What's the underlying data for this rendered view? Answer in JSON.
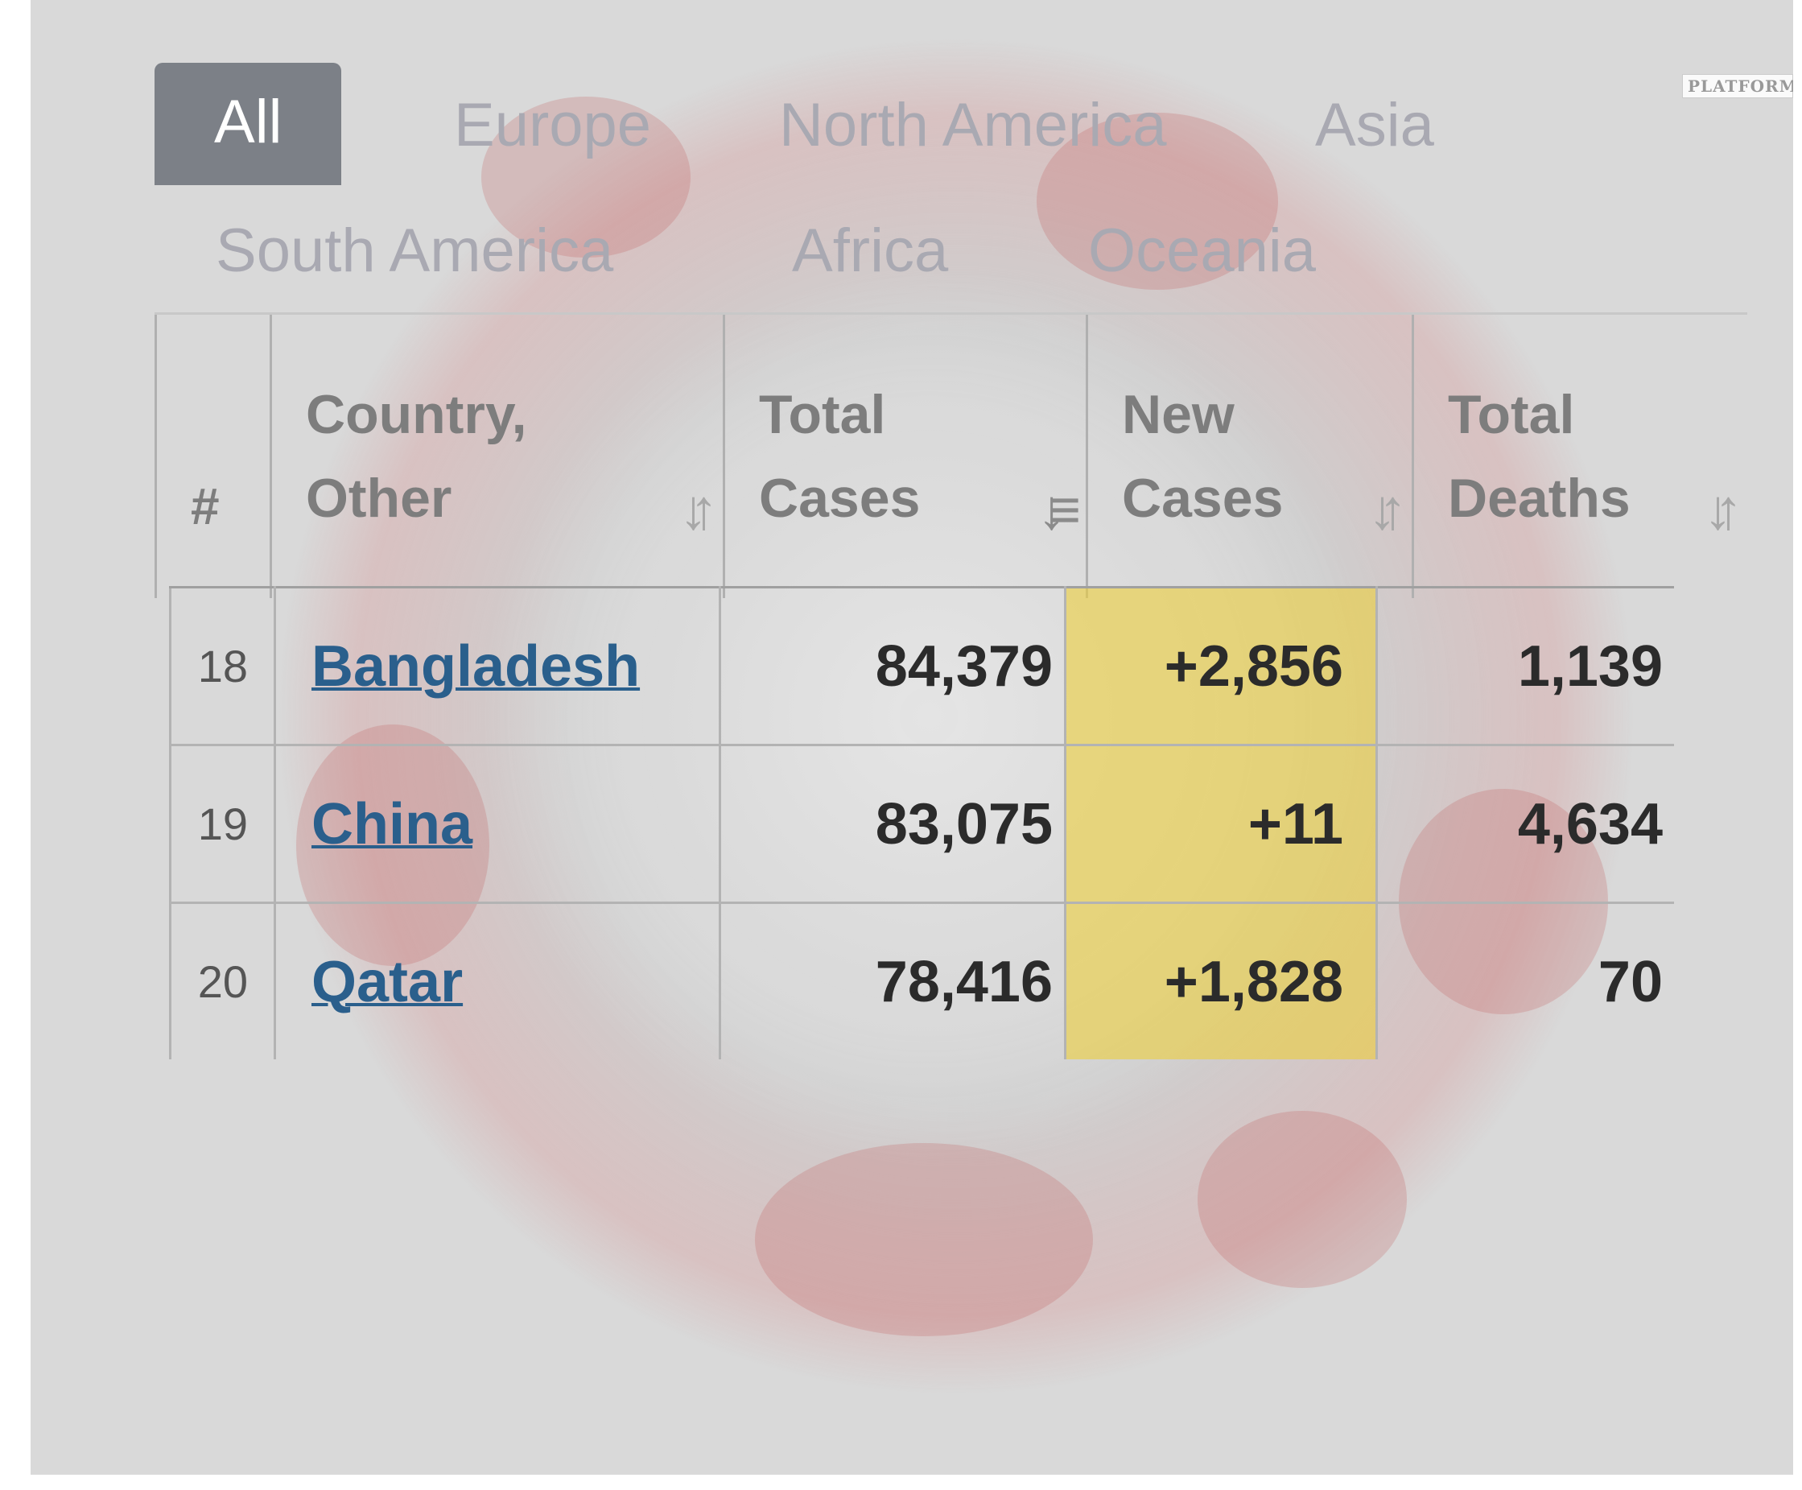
{
  "watermark": "PLATFORM",
  "tabs": [
    {
      "label": "All",
      "active": true
    },
    {
      "label": "Europe",
      "active": false
    },
    {
      "label": "North America",
      "active": false
    },
    {
      "label": "Asia",
      "active": false
    },
    {
      "label": "South America",
      "active": false
    },
    {
      "label": "Africa",
      "active": false
    },
    {
      "label": "Oceania",
      "active": false
    }
  ],
  "table": {
    "headers": [
      {
        "line1": "",
        "line2": "#"
      },
      {
        "line1": "Country,",
        "line2": "Other"
      },
      {
        "line1": "Total",
        "line2": "Cases"
      },
      {
        "line1": "New",
        "line2": "Cases"
      },
      {
        "line1": "Total",
        "line2": "Deaths"
      }
    ],
    "rows": [
      {
        "rank": "18",
        "country": "Bangladesh",
        "total_cases": "84,379",
        "new_cases": "+2,856",
        "total_deaths": "1,139"
      },
      {
        "rank": "19",
        "country": "China",
        "total_cases": "83,075",
        "new_cases": "+11",
        "total_deaths": "4,634"
      },
      {
        "rank": "20",
        "country": "Qatar",
        "total_cases": "78,416",
        "new_cases": "+1,828",
        "total_deaths": "70"
      }
    ]
  },
  "colors": {
    "active_tab_bg": "#7c8087",
    "new_cases_highlight": "#ecce3c",
    "country_link": "#2a5f8c"
  }
}
